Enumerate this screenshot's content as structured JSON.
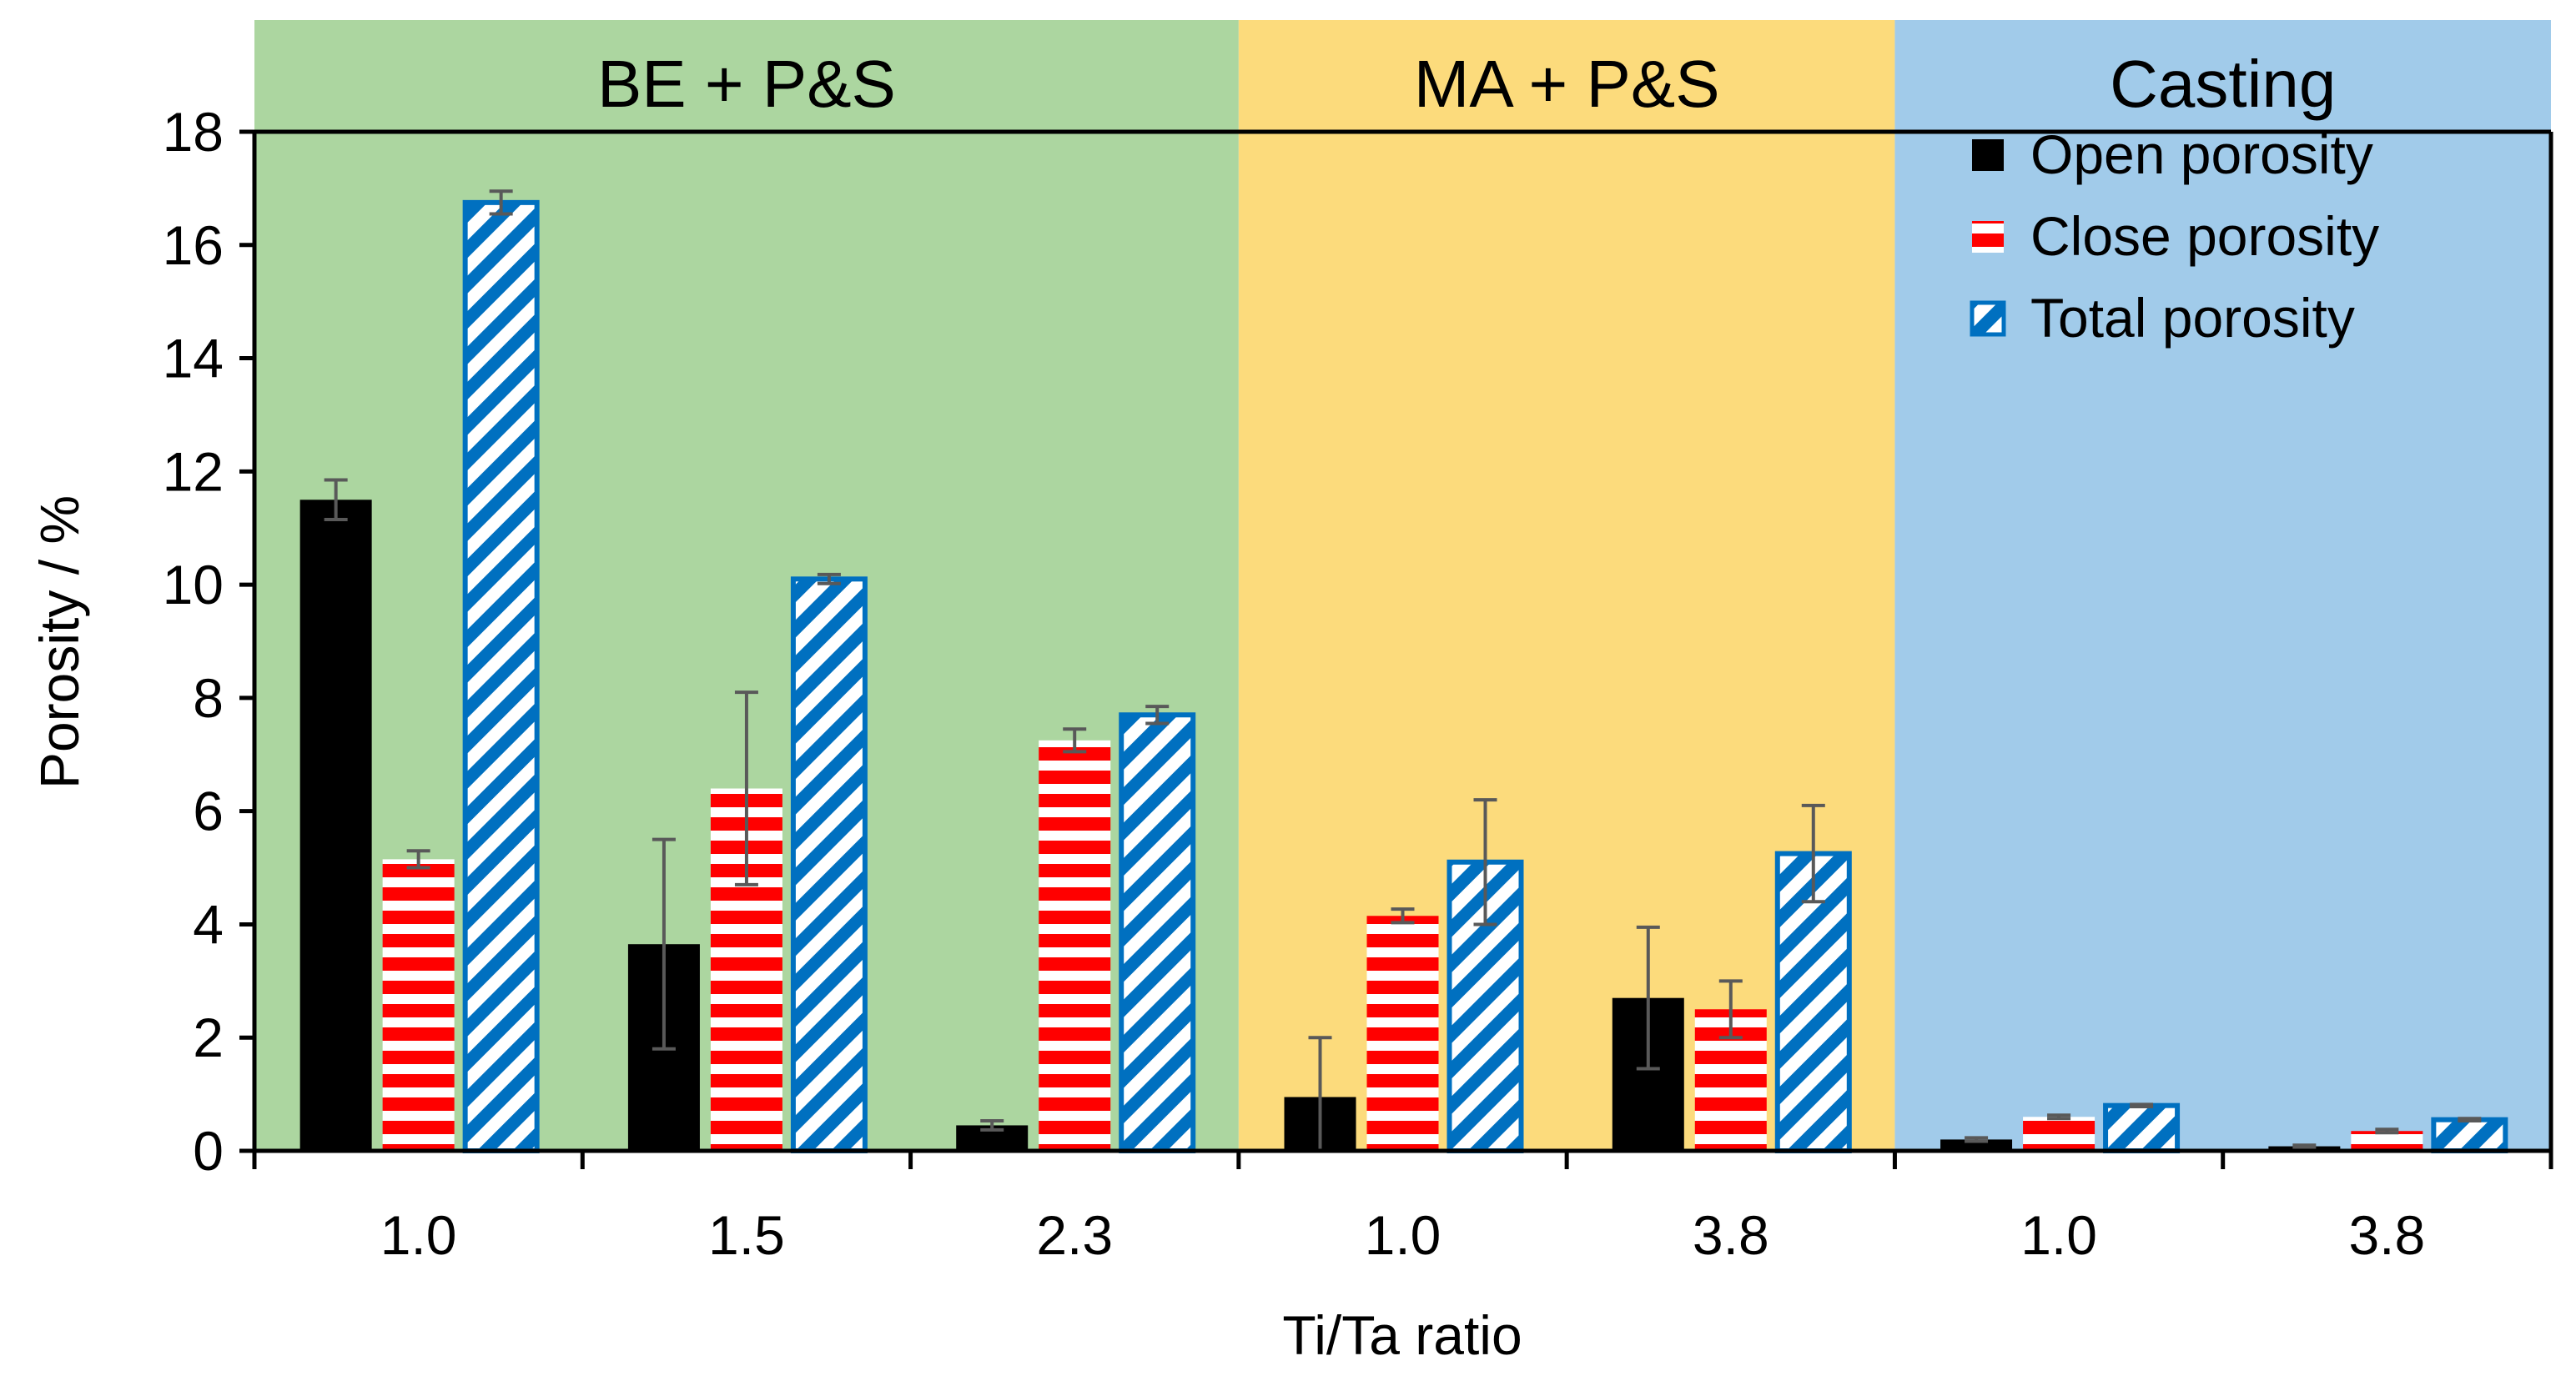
{
  "chart_data": {
    "type": "bar",
    "title": "",
    "xlabel": "Ti/Ta ratio",
    "ylabel": "Porosity / %",
    "ylim": [
      0,
      18
    ],
    "yticks": [
      0,
      2,
      4,
      6,
      8,
      10,
      12,
      14,
      16,
      18
    ],
    "grid": false,
    "legend_position": "top-right",
    "regions": [
      {
        "label": "BE + P&S",
        "color": "#acd6a0",
        "categories": [
          "1.0",
          "1.5",
          "2.3"
        ]
      },
      {
        "label": "MA + P&S",
        "color": "#fcdb7c",
        "categories": [
          "1.0",
          "3.8"
        ]
      },
      {
        "label": "Casting",
        "color": "#a1cbea",
        "categories": [
          "1.0",
          "3.8"
        ]
      }
    ],
    "categories": [
      "1.0",
      "1.5",
      "2.3",
      "1.0",
      "3.8",
      "1.0",
      "3.8"
    ],
    "series": [
      {
        "name": "Open porosity",
        "pattern": "solid",
        "color": "#000000",
        "values": [
          11.5,
          3.65,
          0.45,
          0.95,
          2.7,
          0.2,
          0.08
        ],
        "errors": [
          0.35,
          1.85,
          0.08,
          1.05,
          1.25,
          0.03,
          0.02
        ]
      },
      {
        "name": "Close porosity",
        "pattern": "horizontal-stripes",
        "color": "#ff0000",
        "values": [
          5.15,
          6.4,
          7.25,
          4.15,
          2.5,
          0.6,
          0.35
        ],
        "errors": [
          0.15,
          1.7,
          0.2,
          0.12,
          0.5,
          0.03,
          0.03
        ]
      },
      {
        "name": "Total porosity",
        "pattern": "diagonal-stripes",
        "color": "#0070c0",
        "values": [
          16.75,
          10.1,
          7.7,
          5.1,
          5.25,
          0.8,
          0.55
        ],
        "errors": [
          0.2,
          0.08,
          0.15,
          1.1,
          0.85,
          0.02,
          0.02
        ]
      }
    ]
  }
}
